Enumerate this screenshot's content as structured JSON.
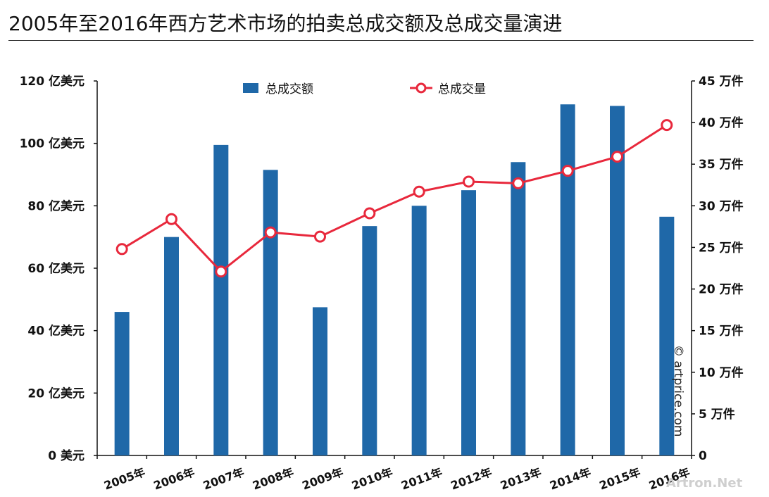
{
  "title": "2005年至2016年西方艺术市场的拍卖总成交额及总成交量演进",
  "copyright": "© artprice.com",
  "watermark": "Artron.Net",
  "colors": {
    "bar": "#1f68a8",
    "line": "#e8283c",
    "axis": "#111111"
  },
  "chart_data": {
    "type": "bar",
    "categories": [
      "2005年",
      "2006年",
      "2007年",
      "2008年",
      "2009年",
      "2010年",
      "2011年",
      "2012年",
      "2013年",
      "2014年",
      "2015年",
      "2016年"
    ],
    "series": [
      {
        "name": "总成交额",
        "type": "bar",
        "axis": "left",
        "values": [
          46,
          70,
          99.5,
          91.5,
          47.5,
          73.5,
          80,
          85,
          94,
          112.5,
          112,
          76.5
        ]
      },
      {
        "name": "总成交量",
        "type": "line",
        "axis": "right",
        "values": [
          24.8,
          28.4,
          22.1,
          26.8,
          26.3,
          29.1,
          31.7,
          32.9,
          32.7,
          34.2,
          35.9,
          39.7
        ]
      }
    ],
    "y_left": {
      "ylim": [
        0,
        120
      ],
      "ticks": [
        0,
        20,
        40,
        60,
        80,
        100,
        120
      ],
      "tick_labels": [
        "0 美元",
        "20 亿美元",
        "40 亿美元",
        "60 亿美元",
        "80 亿美元",
        "100 亿美元",
        "120 亿美元"
      ]
    },
    "y_right": {
      "ylim": [
        0,
        45
      ],
      "ticks": [
        0,
        5,
        10,
        15,
        20,
        25,
        30,
        35,
        40,
        45
      ],
      "tick_labels": [
        "0",
        "5 万件",
        "10 万件",
        "15 万件",
        "20 万件",
        "25 万件",
        "30 万件",
        "35 万件",
        "40 万件",
        "45 万件"
      ]
    },
    "legend": [
      "总成交额",
      "总成交量"
    ],
    "legend_position": "top",
    "grid": false
  }
}
